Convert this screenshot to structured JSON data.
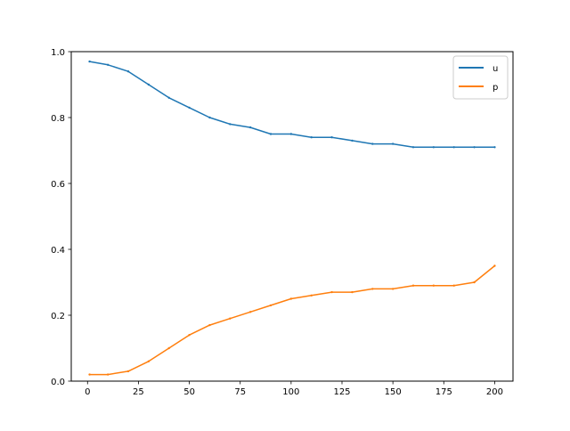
{
  "chart_data": {
    "type": "line",
    "title": "",
    "xlabel": "",
    "ylabel": "",
    "xlim": [
      -8,
      209
    ],
    "ylim": [
      0,
      1.0
    ],
    "x_ticks": [
      0,
      25,
      50,
      75,
      100,
      125,
      150,
      175,
      200
    ],
    "y_ticks": [
      0.0,
      0.2,
      0.4,
      0.6,
      0.8,
      1.0
    ],
    "x_tick_labels": [
      "0",
      "25",
      "50",
      "75",
      "100",
      "125",
      "150",
      "175",
      "200"
    ],
    "y_tick_labels": [
      "0.0",
      "0.2",
      "0.4",
      "0.6",
      "0.8",
      "1.0"
    ],
    "grid": false,
    "legend": {
      "position": "top-right"
    },
    "colors": {
      "u": "#1f77b4",
      "p": "#ff7f0e"
    },
    "x": [
      1,
      10,
      20,
      30,
      40,
      50,
      60,
      70,
      80,
      90,
      100,
      110,
      120,
      130,
      140,
      150,
      160,
      170,
      180,
      190,
      200
    ],
    "series": [
      {
        "name": "u",
        "values": [
          0.97,
          0.96,
          0.94,
          0.9,
          0.86,
          0.83,
          0.8,
          0.78,
          0.77,
          0.75,
          0.75,
          0.74,
          0.74,
          0.73,
          0.72,
          0.72,
          0.71,
          0.71,
          0.71,
          0.71,
          0.71
        ]
      },
      {
        "name": "p",
        "values": [
          0.02,
          0.02,
          0.03,
          0.06,
          0.1,
          0.14,
          0.17,
          0.19,
          0.21,
          0.23,
          0.25,
          0.26,
          0.27,
          0.27,
          0.28,
          0.28,
          0.29,
          0.29,
          0.29,
          0.3,
          0.35
        ]
      }
    ]
  }
}
